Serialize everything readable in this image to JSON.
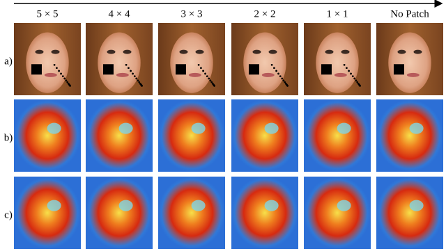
{
  "columns": [
    "5 × 5",
    "4 × 4",
    "3 × 3",
    "2 × 2",
    "1 × 1",
    "No Patch"
  ],
  "rows": [
    "a)",
    "b)",
    "c)"
  ]
}
